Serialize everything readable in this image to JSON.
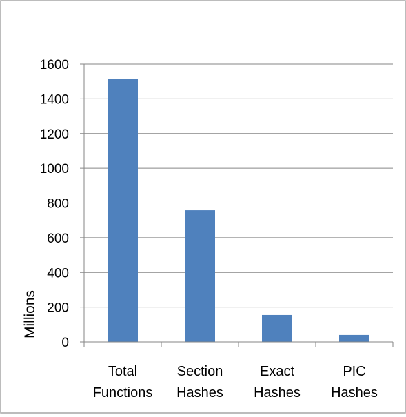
{
  "chart_data": {
    "type": "bar",
    "categories": [
      [
        "Total",
        "Functions"
      ],
      [
        "Section",
        "Hashes"
      ],
      [
        "Exact",
        "Hashes"
      ],
      [
        "PIC",
        "Hashes"
      ]
    ],
    "values": [
      1515,
      758,
      155,
      40
    ],
    "title": "",
    "xlabel": "",
    "ylabel": "Millions",
    "ylim": [
      0,
      1600
    ],
    "yticks": [
      0,
      200,
      400,
      600,
      800,
      1000,
      1200,
      1400,
      1600
    ],
    "grid": true,
    "legend": "none",
    "bar_color": "#4F81BD",
    "grid_color": "#868686",
    "axis_color": "#868686",
    "frame_color": "#A6A6A6"
  }
}
